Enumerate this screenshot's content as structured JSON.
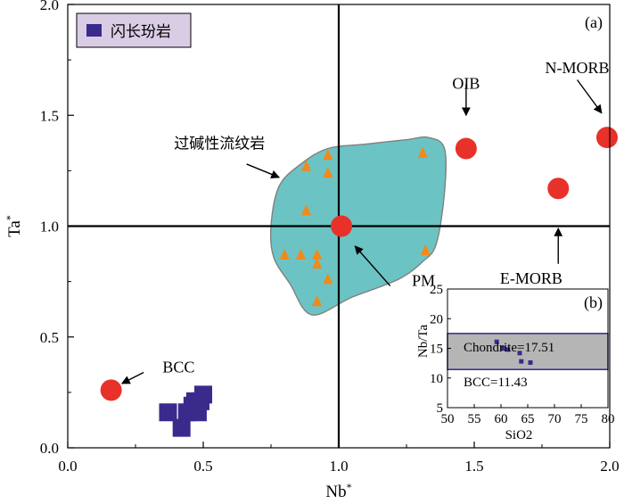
{
  "chart_data": [
    {
      "panel": "(a)",
      "type": "scatter",
      "xlabel": "Nb",
      "xlabel_sup": "*",
      "ylabel": "Ta",
      "ylabel_sup": "*",
      "xlim": [
        0.0,
        2.0
      ],
      "ylim": [
        0.0,
        2.0
      ],
      "xticks": [
        "0.0",
        "0.5",
        "1.0",
        "1.5",
        "2.0"
      ],
      "yticks": [
        "0.0",
        "0.5",
        "1.0",
        "1.5",
        "2.0"
      ],
      "reference_lines": {
        "x": 1.0,
        "y": 1.0
      },
      "legend": {
        "placement": "top-left",
        "label": "闪长玢岩",
        "color": "#3a2a8c"
      },
      "series": [
        {
          "name": "闪长玢岩",
          "marker": "square",
          "color": "#3a2a8c",
          "points": [
            [
              0.37,
              0.16
            ],
            [
              0.42,
              0.09
            ],
            [
              0.44,
              0.16
            ],
            [
              0.46,
              0.19
            ],
            [
              0.48,
              0.16
            ],
            [
              0.49,
              0.21
            ],
            [
              0.5,
              0.24
            ],
            [
              0.47,
              0.21
            ]
          ]
        },
        {
          "marker": "triangle",
          "color": "#f08a1c",
          "points": [
            [
              0.8,
              0.87
            ],
            [
              0.86,
              0.87
            ],
            [
              0.88,
              1.27
            ],
            [
              0.88,
              1.07
            ],
            [
              0.92,
              0.87
            ],
            [
              0.92,
              0.83
            ],
            [
              0.92,
              0.66
            ],
            [
              0.96,
              1.32
            ],
            [
              0.96,
              1.24
            ],
            [
              0.96,
              0.76
            ],
            [
              1.31,
              1.33
            ],
            [
              1.32,
              0.89
            ]
          ]
        },
        {
          "marker": "circle",
          "color": "#e8312a",
          "points": [
            {
              "label": "BCC",
              "x": 0.16,
              "y": 0.26
            },
            {
              "label": "PM",
              "x": 1.01,
              "y": 1.0
            },
            {
              "label": "OIB",
              "x": 1.47,
              "y": 1.35
            },
            {
              "label": "E-MORB",
              "x": 1.81,
              "y": 1.17
            },
            {
              "label": "N-MORB",
              "x": 1.99,
              "y": 1.4
            }
          ]
        }
      ],
      "field": {
        "label": "过碱性流纹岩",
        "color": "#6cc3c3",
        "outline": "#808080",
        "polygon": [
          [
            0.78,
            1.18
          ],
          [
            0.86,
            1.28
          ],
          [
            0.96,
            1.35
          ],
          [
            1.1,
            1.37
          ],
          [
            1.25,
            1.39
          ],
          [
            1.33,
            1.4
          ],
          [
            1.39,
            1.35
          ],
          [
            1.39,
            1.15
          ],
          [
            1.36,
            0.92
          ],
          [
            1.31,
            0.84
          ],
          [
            1.22,
            0.76
          ],
          [
            1.05,
            0.68
          ],
          [
            0.9,
            0.6
          ],
          [
            0.82,
            0.74
          ],
          [
            0.76,
            0.86
          ],
          [
            0.75,
            1.0
          ]
        ]
      },
      "annotations": [
        {
          "text": "OIB",
          "x": 1.47,
          "y": 1.62,
          "ax": 1.47,
          "ay": 1.64,
          "bx": 1.47,
          "by": 1.5
        },
        {
          "text": "N-MORB",
          "x": 1.88,
          "y": 1.69,
          "ax": 1.88,
          "ay": 1.66,
          "bx": 1.97,
          "by": 1.51
        },
        {
          "text": "E-MORB",
          "x": 1.71,
          "y": 0.74,
          "ax": 1.81,
          "ay": 0.83,
          "bx": 1.81,
          "by": 0.99
        },
        {
          "text": "PM",
          "x": 1.27,
          "y": 0.73,
          "ax": 1.19,
          "ay": 0.73,
          "bx": 1.06,
          "by": 0.91
        },
        {
          "text": "BCC",
          "x": 0.35,
          "y": 0.34,
          "ax": 0.28,
          "ay": 0.34,
          "bx": 0.2,
          "by": 0.29
        },
        {
          "text": "过碱性流纹岩",
          "x": 0.56,
          "y": 1.35,
          "ax": 0.66,
          "ay": 1.28,
          "bx": 0.78,
          "by": 1.22
        }
      ]
    },
    {
      "panel": "(b)",
      "type": "scatter",
      "xlabel": "SiO2",
      "ylabel": "Nb/Ta",
      "xlim": [
        50,
        80
      ],
      "ylim": [
        5,
        25
      ],
      "xticks": [
        "50",
        "55",
        "60",
        "65",
        "70",
        "75",
        "80"
      ],
      "yticks": [
        "5",
        "10",
        "15",
        "20",
        "25"
      ],
      "band": {
        "y_low": 11.43,
        "y_high": 17.51,
        "color": "#b5b5b5",
        "border": "#3a2a8c"
      },
      "band_labels": [
        "Chondrite=17.51",
        "BCC=11.43"
      ],
      "points": [
        [
          59.2,
          16.1
        ],
        [
          60.3,
          15.0
        ],
        [
          61.3,
          14.8
        ],
        [
          63.5,
          14.2
        ],
        [
          63.8,
          12.8
        ],
        [
          65.5,
          12.6
        ]
      ],
      "point_color": "#3a2a8c"
    }
  ]
}
